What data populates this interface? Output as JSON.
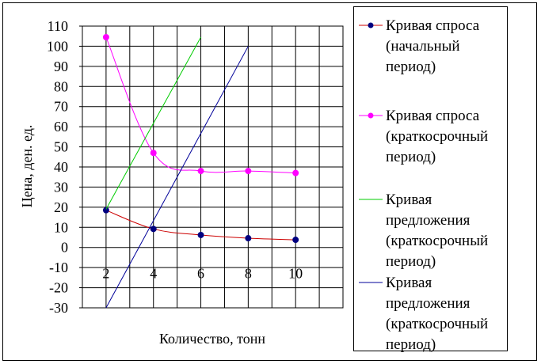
{
  "chart_data": {
    "type": "line",
    "xlabel": "Количество, тонн",
    "ylabel": "Цена, ден. ед.",
    "xlim": [
      1,
      12
    ],
    "ylim": [
      -30,
      110
    ],
    "x_ticks": [
      2,
      4,
      6,
      8,
      10
    ],
    "y_ticks": [
      -30,
      -20,
      -10,
      0,
      10,
      20,
      30,
      40,
      50,
      60,
      70,
      80,
      90,
      100,
      110
    ],
    "grid": true,
    "legend_position": "right",
    "series": [
      {
        "name": "Кривая спроса (начальный период)",
        "legend_lines": [
          "Кривая спроса",
          "(начальный",
          "период)"
        ],
        "color": "#cc0000",
        "marker_color": "#000080",
        "markers": true,
        "smooth": true,
        "x": [
          2,
          4,
          6,
          8,
          10
        ],
        "y": [
          18.5,
          9.2,
          6.2,
          4.6,
          3.8
        ]
      },
      {
        "name": "Кривая спроса (краткосрочный период)",
        "legend_lines": [
          "Кривая спроса",
          "(краткосрочный",
          "период)"
        ],
        "color": "#ff00ff",
        "marker_color": "#ff00ff",
        "markers": true,
        "smooth": true,
        "x": [
          2,
          4,
          6,
          8,
          10
        ],
        "y": [
          104.5,
          47,
          38,
          38,
          37
        ]
      },
      {
        "name": "Кривая предложения (краткосрочный период)",
        "legend_lines": [
          "Кривая",
          "предложения",
          "(краткосрочный",
          "период)"
        ],
        "color": "#00cc00",
        "markers": false,
        "smooth": false,
        "x": [
          2,
          6
        ],
        "y": [
          19,
          104.5
        ]
      },
      {
        "name": "Кривая предложения (краткосрочный период)",
        "legend_lines": [
          "Кривая",
          "предложения",
          "(краткосрочный",
          "период)"
        ],
        "color": "#000099",
        "markers": false,
        "smooth": false,
        "x": [
          2,
          8
        ],
        "y": [
          -30,
          100
        ]
      }
    ]
  }
}
